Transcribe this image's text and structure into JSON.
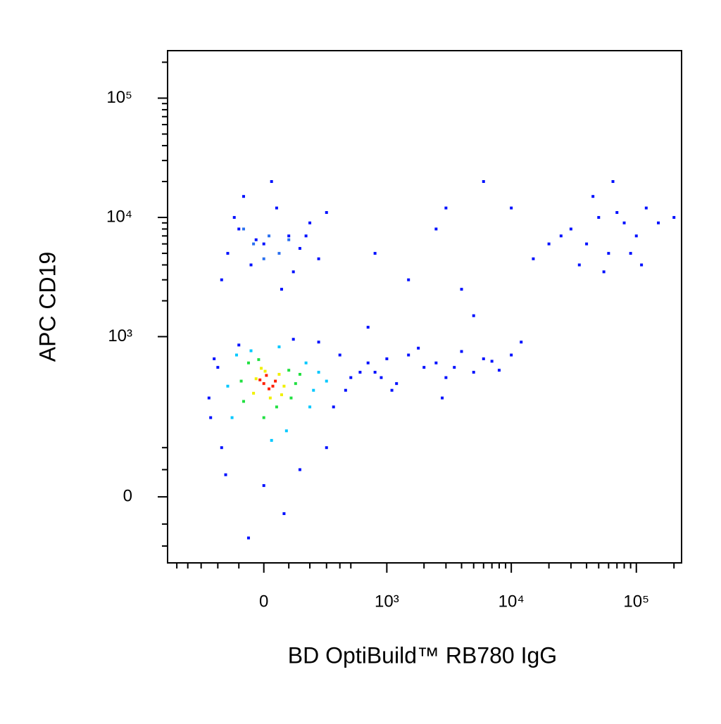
{
  "chart_data": {
    "type": "scatter",
    "xscale": "biexponential",
    "yscale": "biexponential",
    "x_label": "BD OptiBuild™ RB780 IgG",
    "y_label": "APC CD19",
    "xlim": [
      -600,
      230000
    ],
    "ylim": [
      -150,
      250000
    ],
    "xticks": [
      {
        "value": 0,
        "label": "0"
      },
      {
        "value": 1000,
        "label": "10³"
      },
      {
        "value": 10000,
        "label": "10⁴"
      },
      {
        "value": 100000,
        "label": "10⁵"
      }
    ],
    "yticks": [
      {
        "value": 0,
        "label": "0"
      },
      {
        "value": 1000,
        "label": "10³"
      },
      {
        "value": 10000,
        "label": "10⁴"
      },
      {
        "value": 100000,
        "label": "10⁵"
      }
    ],
    "xminor_ticks": [
      -500,
      -400,
      -300,
      -200,
      -100,
      100,
      200,
      300,
      400,
      500,
      2000,
      3000,
      4000,
      5000,
      6000,
      7000,
      8000,
      9000,
      20000,
      30000,
      40000,
      50000,
      60000,
      70000,
      80000,
      90000,
      200000
    ],
    "yminor_ticks": [
      -100,
      -50,
      50,
      100,
      2000,
      3000,
      4000,
      5000,
      6000,
      7000,
      8000,
      9000,
      20000,
      30000,
      40000,
      50000,
      60000,
      70000,
      80000,
      90000,
      200000
    ],
    "series": [
      {
        "color": "#0010ff",
        "x": [
          -250,
          -200,
          350,
          400,
          -180,
          500,
          -100,
          150,
          -220,
          250,
          600,
          80,
          -160,
          300,
          450,
          -60,
          120,
          700,
          -240,
          0,
          800,
          1000,
          1200,
          1500,
          2000,
          2500,
          3000,
          4000,
          5000,
          6000,
          8000,
          10000,
          1100,
          1800,
          2800,
          3500,
          7000,
          900,
          -150,
          -100,
          -50,
          0,
          50,
          100,
          150,
          200,
          -180,
          250,
          -80,
          120,
          30,
          -120,
          180,
          70,
          -30,
          300,
          30000,
          40000,
          50000,
          60000,
          80000,
          100000,
          120000,
          35000,
          45000,
          70000,
          90000,
          25000,
          55000,
          150000,
          200000,
          65000,
          20000,
          110000,
          1500,
          2500,
          4000,
          6000,
          10000,
          15000,
          700,
          5000,
          3000,
          12000,
          800
        ],
        "y": [
          300,
          550,
          250,
          700,
          100,
          450,
          850,
          50,
          650,
          900,
          500,
          -30,
          40,
          100,
          350,
          -80,
          950,
          600,
          200,
          20,
          500,
          650,
          400,
          700,
          550,
          600,
          450,
          750,
          500,
          650,
          520,
          700,
          350,
          800,
          300,
          550,
          620,
          450,
          5000,
          8000,
          4000,
          6000,
          12000,
          7000,
          5500,
          9000,
          3000,
          4500,
          15000,
          3500,
          20000,
          10000,
          7000,
          2500,
          6500,
          11000,
          8000,
          6000,
          10000,
          5000,
          9000,
          7000,
          12000,
          4000,
          15000,
          11000,
          5000,
          7000,
          3500,
          9000,
          10000,
          20000,
          6000,
          4000,
          3000,
          8000,
          2500,
          20000,
          12000,
          4500,
          1200,
          1500,
          12000,
          900,
          5000
        ]
      },
      {
        "color": "#2a70f0",
        "x": [
          -40,
          20,
          60,
          -80,
          0,
          100
        ],
        "y": [
          6000,
          7000,
          5000,
          8000,
          4500,
          6500
        ]
      },
      {
        "color": "#00c8ff",
        "x": [
          -130,
          180,
          220,
          -110,
          90,
          -50,
          250,
          30,
          300,
          -150,
          200,
          60
        ],
        "y": [
          200,
          600,
          350,
          700,
          150,
          760,
          500,
          120,
          420,
          380,
          250,
          820
        ]
      },
      {
        "color": "#20e040",
        "x": [
          -80,
          100,
          130,
          -60,
          50,
          -20,
          110,
          0,
          150,
          -90
        ],
        "y": [
          280,
          520,
          400,
          600,
          250,
          640,
          300,
          200,
          480,
          420
        ]
      },
      {
        "color": "#f0f000",
        "x": [
          -40,
          60,
          80,
          -30,
          25,
          5,
          70,
          -10
        ],
        "y": [
          330,
          480,
          380,
          440,
          300,
          510,
          320,
          540
        ]
      },
      {
        "color": "#ff2000",
        "x": [
          0,
          20,
          -15,
          35,
          10,
          45
        ],
        "y": [
          400,
          360,
          430,
          380,
          470,
          420
        ]
      }
    ]
  }
}
